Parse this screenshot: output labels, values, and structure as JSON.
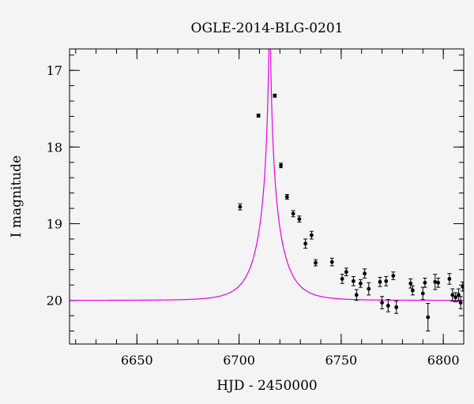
{
  "chart_data": {
    "type": "scatter",
    "title": "OGLE-2014-BLG-0201",
    "xlabel": "HJD - 2450000",
    "ylabel": "I magnitude",
    "xlim": [
      6617,
      6810
    ],
    "ylim": [
      20.57,
      16.72
    ],
    "y_inverted": true,
    "grid": false,
    "x_major_ticks": [
      6650,
      6700,
      6750,
      6800
    ],
    "x_tick_labels": [
      "6650",
      "6700",
      "6750",
      "6800"
    ],
    "x_minor_step": 10,
    "y_major_ticks": [
      17,
      18,
      19,
      20
    ],
    "y_tick_labels": [
      "17",
      "18",
      "19",
      "20"
    ],
    "y_minor_step": 0.2,
    "colors": {
      "model": "#e600e6",
      "points": "#000000",
      "background": "#f4f4f4"
    },
    "series": [
      {
        "kind": "points_with_errorbars",
        "points": [
          {
            "x": 6700.5,
            "y": 18.78,
            "err": 0.04
          },
          {
            "x": 6709.5,
            "y": 17.59,
            "err": 0.02
          },
          {
            "x": 6717.5,
            "y": 17.33,
            "err": 0.02
          },
          {
            "x": 6720.5,
            "y": 18.24,
            "err": 0.03
          },
          {
            "x": 6723.5,
            "y": 18.65,
            "err": 0.03
          },
          {
            "x": 6726.5,
            "y": 18.87,
            "err": 0.04
          },
          {
            "x": 6729.5,
            "y": 18.94,
            "err": 0.04
          },
          {
            "x": 6732.5,
            "y": 19.26,
            "err": 0.06
          },
          {
            "x": 6735.5,
            "y": 19.15,
            "err": 0.05
          },
          {
            "x": 6737.5,
            "y": 19.51,
            "err": 0.04
          },
          {
            "x": 6745.5,
            "y": 19.5,
            "err": 0.05
          },
          {
            "x": 6750.5,
            "y": 19.72,
            "err": 0.06
          },
          {
            "x": 6752.5,
            "y": 19.63,
            "err": 0.05
          },
          {
            "x": 6756.0,
            "y": 19.75,
            "err": 0.06
          },
          {
            "x": 6757.5,
            "y": 19.93,
            "err": 0.07
          },
          {
            "x": 6759.5,
            "y": 19.78,
            "err": 0.05
          },
          {
            "x": 6761.5,
            "y": 19.65,
            "err": 0.06
          },
          {
            "x": 6763.5,
            "y": 19.85,
            "err": 0.08
          },
          {
            "x": 6769.0,
            "y": 19.76,
            "err": 0.06
          },
          {
            "x": 6770.0,
            "y": 20.03,
            "err": 0.08
          },
          {
            "x": 6772.0,
            "y": 19.75,
            "err": 0.06
          },
          {
            "x": 6773.0,
            "y": 20.07,
            "err": 0.08
          },
          {
            "x": 6775.5,
            "y": 19.68,
            "err": 0.05
          },
          {
            "x": 6777.0,
            "y": 20.09,
            "err": 0.08
          },
          {
            "x": 6784.0,
            "y": 19.78,
            "err": 0.06
          },
          {
            "x": 6785.0,
            "y": 19.87,
            "err": 0.06
          },
          {
            "x": 6790.0,
            "y": 19.91,
            "err": 0.08
          },
          {
            "x": 6791.0,
            "y": 19.77,
            "err": 0.06
          },
          {
            "x": 6792.5,
            "y": 20.22,
            "err": 0.18
          },
          {
            "x": 6796.0,
            "y": 19.76,
            "err": 0.1
          },
          {
            "x": 6797.5,
            "y": 19.77,
            "err": 0.06
          },
          {
            "x": 6803.0,
            "y": 19.72,
            "err": 0.07
          },
          {
            "x": 6804.5,
            "y": 19.93,
            "err": 0.08
          },
          {
            "x": 6806.0,
            "y": 19.96,
            "err": 0.06
          },
          {
            "x": 6807.5,
            "y": 19.93,
            "err": 0.08
          },
          {
            "x": 6808.5,
            "y": 20.03,
            "err": 0.08
          },
          {
            "x": 6809.5,
            "y": 19.82,
            "err": 0.06
          }
        ]
      },
      {
        "kind": "model_curve",
        "model": {
          "t0": 6715.0,
          "u0": 0.03,
          "tE": 12.0,
          "I_source": 20.0,
          "blend_fraction": 0.9
        }
      }
    ]
  }
}
